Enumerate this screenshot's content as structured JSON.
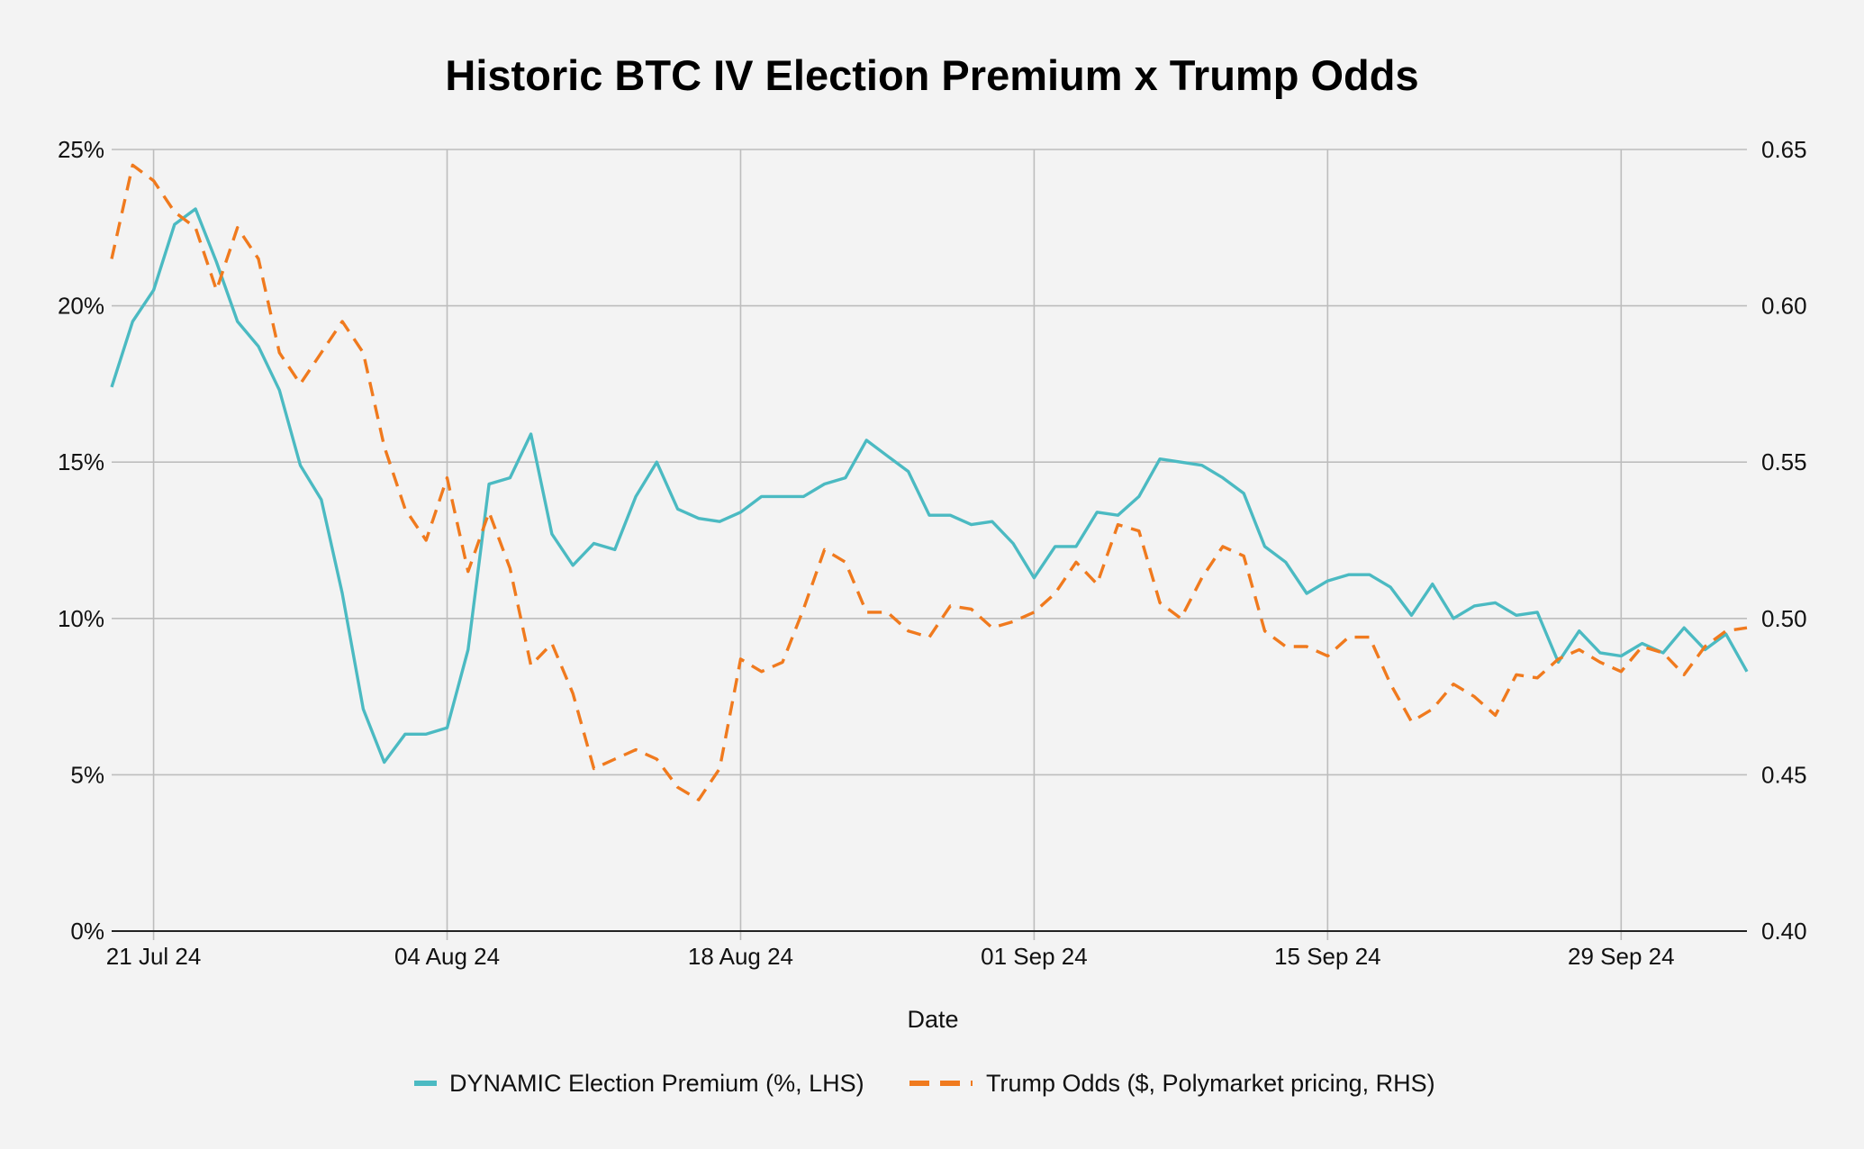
{
  "chart_data": {
    "type": "line",
    "title": "Historic BTC IV Election Premium x Trump Odds",
    "xlabel": "Date",
    "ylabel_left": "",
    "ylabel_right": "",
    "x_tick_labels": [
      "21 Jul 24",
      "04 Aug 24",
      "18 Aug 24",
      "01 Sep 24",
      "15 Sep 24",
      "29 Sep 24"
    ],
    "x_tick_days": [
      2,
      16,
      30,
      44,
      58,
      72
    ],
    "y_left_ticks": [
      "0%",
      "5%",
      "10%",
      "15%",
      "20%",
      "25%"
    ],
    "y_left_range": [
      0,
      25
    ],
    "y_right_ticks": [
      "0.40",
      "0.45",
      "0.50",
      "0.55",
      "0.60",
      "0.65"
    ],
    "y_right_range": [
      0.4,
      0.65
    ],
    "x_range_days": [
      0,
      78
    ],
    "grid": true,
    "legend_position": "bottom",
    "series": [
      {
        "name": "DYNAMIC Election Premium (%, LHS)",
        "axis": "left",
        "color": "#4bbac2",
        "style": "solid",
        "x": [
          0,
          1,
          2,
          3,
          4,
          5,
          6,
          7,
          8,
          9,
          10,
          11,
          12,
          13,
          14,
          15,
          16,
          17,
          18,
          19,
          20,
          21,
          22,
          23,
          24,
          25,
          26,
          27,
          28,
          29,
          30,
          31,
          32,
          33,
          34,
          35,
          36,
          37,
          38,
          39,
          40,
          41,
          42,
          43,
          44,
          45,
          46,
          47,
          48,
          49,
          50,
          51,
          52,
          53,
          54,
          55,
          56,
          57,
          58,
          59,
          60,
          61,
          62,
          63,
          64,
          65,
          66,
          67,
          68,
          69,
          70,
          71,
          72,
          73,
          74,
          75,
          76,
          77,
          78
        ],
        "values": [
          17.4,
          19.5,
          20.5,
          22.6,
          23.1,
          21.4,
          19.5,
          18.7,
          17.3,
          14.9,
          13.8,
          10.8,
          7.1,
          5.4,
          6.3,
          6.3,
          6.5,
          9.0,
          14.3,
          14.5,
          15.9,
          12.7,
          11.7,
          12.4,
          12.2,
          13.9,
          15.0,
          13.5,
          13.2,
          13.1,
          13.4,
          13.9,
          13.9,
          13.9,
          14.3,
          14.5,
          15.7,
          15.2,
          14.7,
          13.3,
          13.3,
          13.0,
          13.1,
          12.4,
          11.3,
          12.3,
          12.3,
          13.4,
          13.3,
          13.9,
          15.1,
          15.0,
          14.9,
          14.5,
          14.0,
          12.3,
          11.8,
          10.8,
          11.2,
          11.4,
          11.4,
          11.0,
          10.1,
          11.1,
          10.0,
          10.4,
          10.5,
          10.1,
          10.2,
          8.6,
          9.6,
          8.9,
          8.8,
          9.2,
          8.9,
          9.7,
          9.0,
          9.5,
          8.3
        ]
      },
      {
        "name": "Trump Odds ($, Polymarket pricing, RHS)",
        "axis": "right",
        "color": "#f07a1e",
        "style": "dashed",
        "x": [
          0,
          1,
          2,
          3,
          4,
          5,
          6,
          7,
          8,
          9,
          10,
          11,
          12,
          13,
          14,
          15,
          16,
          17,
          18,
          19,
          20,
          21,
          22,
          23,
          24,
          25,
          26,
          27,
          28,
          29,
          30,
          31,
          32,
          33,
          34,
          35,
          36,
          37,
          38,
          39,
          40,
          41,
          42,
          43,
          44,
          45,
          46,
          47,
          48,
          49,
          50,
          51,
          52,
          53,
          54,
          55,
          56,
          57,
          58,
          59,
          60,
          61,
          62,
          63,
          64,
          65,
          66,
          67,
          68,
          69,
          70,
          71,
          72,
          73,
          74,
          75,
          76,
          77,
          78
        ],
        "values": [
          0.615,
          0.645,
          0.64,
          0.63,
          0.625,
          0.605,
          0.625,
          0.615,
          0.585,
          0.575,
          0.585,
          0.595,
          0.585,
          0.555,
          0.535,
          0.525,
          0.545,
          0.515,
          0.534,
          0.516,
          0.485,
          0.492,
          0.476,
          0.452,
          0.455,
          0.458,
          0.455,
          0.446,
          0.442,
          0.452,
          0.487,
          0.483,
          0.486,
          0.503,
          0.522,
          0.518,
          0.502,
          0.502,
          0.496,
          0.494,
          0.504,
          0.503,
          0.497,
          0.499,
          0.502,
          0.508,
          0.518,
          0.511,
          0.53,
          0.528,
          0.505,
          0.5,
          0.513,
          0.523,
          0.52,
          0.496,
          0.491,
          0.491,
          0.488,
          0.494,
          0.494,
          0.479,
          0.467,
          0.471,
          0.479,
          0.475,
          0.469,
          0.482,
          0.481,
          0.487,
          0.49,
          0.486,
          0.483,
          0.491,
          0.489,
          0.482,
          0.491,
          0.496,
          0.497
        ]
      }
    ]
  }
}
